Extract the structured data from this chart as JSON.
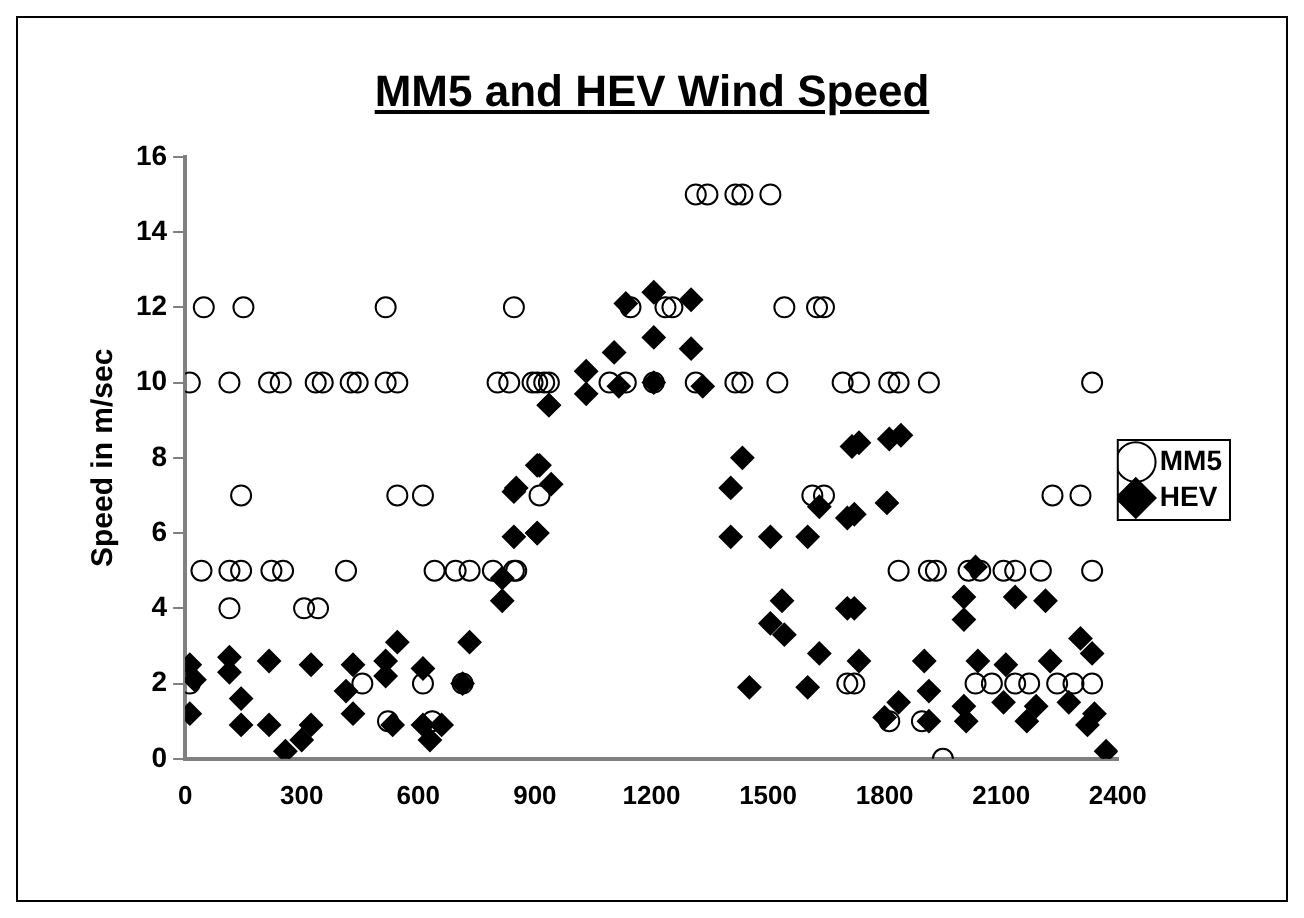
{
  "chart_data": {
    "type": "scatter",
    "title": "MM5 and HEV Wind Speed",
    "ylabel": "Speed in m/sec",
    "xlim": [
      0,
      2400
    ],
    "xticks": [
      0,
      300,
      600,
      900,
      1200,
      1500,
      1800,
      2100,
      2400
    ],
    "ylim": [
      0,
      16
    ],
    "yticks": [
      0,
      2,
      4,
      6,
      8,
      10,
      12,
      14,
      16
    ],
    "grid": false,
    "legend": "right",
    "series": [
      {
        "name": "MM5",
        "color": "#000000",
        "marker": "circle",
        "x": [
          48,
          150,
          516,
          846,
          12,
          114,
          216,
          246,
          336,
          354,
          426,
          444,
          516,
          546,
          804,
          906,
          936,
          144,
          546,
          612,
          42,
          114,
          144,
          222,
          252,
          414,
          642,
          696,
          732,
          792,
          846,
          114,
          306,
          342,
          12,
          456,
          612,
          714,
          522,
          636,
          1314,
          1344,
          1416,
          1434,
          1506,
          1146,
          1236,
          1254,
          1542,
          1626,
          1644,
          834,
          894,
          924,
          1092,
          1134,
          1206,
          1314,
          1416,
          1434,
          1524,
          1692,
          912,
          1614,
          1644,
          852,
          1704,
          1734,
          1812,
          1836,
          1914,
          2334,
          2232,
          2304,
          1836,
          1914,
          1932,
          2016,
          2046,
          2106,
          2136,
          2202,
          2334,
          1722,
          2034,
          2076,
          2136,
          2172,
          2244,
          2286,
          2334,
          1812,
          1896,
          1950
        ],
        "values": [
          12,
          12,
          12,
          12,
          10,
          10,
          10,
          10,
          10,
          10,
          10,
          10,
          10,
          10,
          10,
          10,
          10,
          7,
          7,
          7,
          5,
          5,
          5,
          5,
          5,
          5,
          5,
          5,
          5,
          5,
          5,
          4,
          4,
          4,
          2,
          2,
          2,
          2,
          1,
          1,
          15,
          15,
          15,
          15,
          15,
          12,
          12,
          12,
          12,
          12,
          12,
          10,
          10,
          10,
          10,
          10,
          10,
          10,
          10,
          10,
          10,
          10,
          7,
          7,
          7,
          5,
          2,
          10,
          10,
          10,
          10,
          10,
          7,
          7,
          5,
          5,
          5,
          5,
          5,
          5,
          5,
          5,
          5,
          2,
          2,
          2,
          2,
          2,
          2,
          2,
          2,
          1,
          1,
          0
        ]
      },
      {
        "name": "HEV",
        "color": "#000000",
        "marker": "diamond",
        "x": [
          816,
          816,
          846,
          846,
          906,
          906,
          936,
          12,
          24,
          12,
          114,
          114,
          144,
          144,
          216,
          216,
          324,
          324,
          432,
          414,
          432,
          516,
          546,
          516,
          612,
          612,
          714,
          732,
          534,
          258,
          300,
          630,
          660,
          936,
          1032,
          1032,
          1104,
          1134,
          1206,
          1206,
          1206,
          1302,
          1302,
          1332,
          1116,
          912,
          942,
          852,
          906,
          1434,
          1404,
          1404,
          1506,
          1602,
          1632,
          1704,
          1536,
          1506,
          1542,
          1632,
          1704,
          1452,
          1602,
          1716,
          1734,
          1812,
          1842,
          1722,
          1806,
          1722,
          2034,
          2004,
          2004,
          2136,
          2214,
          1734,
          1902,
          2040,
          2112,
          2226,
          2304,
          2334,
          1836,
          1914,
          2004,
          2106,
          2190,
          2274,
          2340,
          1800,
          1914,
          2010,
          2166,
          2322,
          2370
        ],
        "values": [
          4.8,
          4.2,
          7.1,
          5.9,
          7.8,
          6,
          9.4,
          2.5,
          2.1,
          1.2,
          2.7,
          2.3,
          1.6,
          0.9,
          2.6,
          0.9,
          2.5,
          0.9,
          2.5,
          1.8,
          1.2,
          2.6,
          3.1,
          2.2,
          2.4,
          0.9,
          2,
          3.1,
          0.9,
          0.2,
          0.5,
          0.5,
          0.9,
          9.4,
          9.7,
          10.3,
          10.8,
          12.1,
          12.4,
          11.2,
          10,
          12.2,
          10.9,
          9.9,
          9.9,
          7.8,
          7.3,
          7.2,
          6,
          8,
          7.2,
          5.9,
          5.9,
          5.9,
          6.7,
          6.4,
          4.2,
          3.6,
          3.3,
          2.8,
          4,
          1.9,
          1.9,
          8.3,
          8.4,
          8.5,
          8.6,
          6.5,
          6.8,
          4,
          5.1,
          4.3,
          3.7,
          4.3,
          4.2,
          2.6,
          2.6,
          2.6,
          2.5,
          2.6,
          3.2,
          2.8,
          1.5,
          1.8,
          1.4,
          1.5,
          1.4,
          1.5,
          1.2,
          1.1,
          1,
          1,
          1,
          0.9,
          0.2
        ]
      }
    ]
  }
}
